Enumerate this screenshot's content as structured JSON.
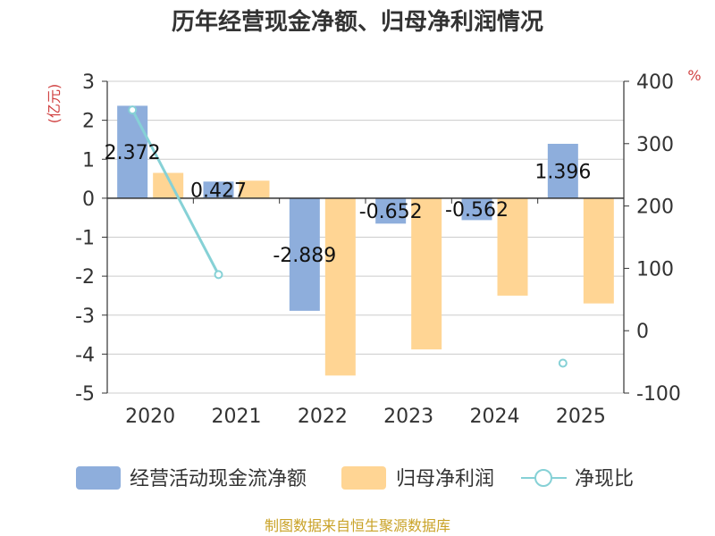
{
  "chart_data": {
    "type": "bar",
    "title": "历年经营现金净额、归母净利润情况",
    "categories": [
      "2020",
      "2021",
      "2022",
      "2023",
      "2024",
      "2025"
    ],
    "left_axis": {
      "label": "(亿元)",
      "ticks": [
        3,
        2,
        1,
        0,
        -1,
        -2,
        -3,
        -4,
        -5
      ],
      "ylim": [
        -5,
        3
      ]
    },
    "right_axis": {
      "label": "%",
      "ticks": [
        400,
        300,
        200,
        100,
        0,
        -100
      ],
      "ylim": [
        -100,
        400
      ]
    },
    "series": [
      {
        "name": "经营活动现金流净额",
        "type": "bar",
        "axis": "left",
        "color": "#8eaedc",
        "values": [
          2.372,
          0.427,
          -2.889,
          -0.652,
          -0.562,
          1.396
        ],
        "labels": [
          "2.372",
          "0.427",
          "-2.889",
          "-0.652",
          "-0.562",
          "1.396"
        ]
      },
      {
        "name": "归母净利润",
        "type": "bar",
        "axis": "left",
        "color": "#ffd594",
        "values": [
          0.65,
          0.45,
          -4.55,
          -3.88,
          -2.5,
          -2.7
        ]
      },
      {
        "name": "净现比",
        "type": "line",
        "axis": "right",
        "color": "#86d1d6",
        "values": [
          354,
          90,
          null,
          null,
          null,
          -52
        ]
      }
    ],
    "legend_position": "bottom",
    "grid": true,
    "source": "制图数据来自恒生聚源数据库",
    "colors": {
      "left_unit": "#d04040",
      "right_unit": "#d04040",
      "source": "#c9a227",
      "axis": "#333333",
      "grid": "#cccccc"
    }
  }
}
